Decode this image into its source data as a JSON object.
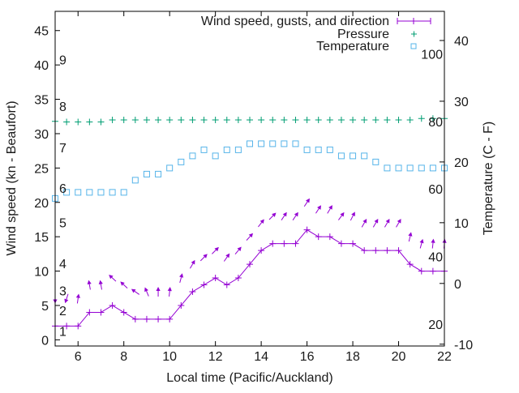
{
  "chart_data": {
    "type": "line",
    "title": "",
    "xlabel": "Local time (Pacific/Auckland)",
    "ylabel": "Wind speed (kn - Beaufort)",
    "y2label": "Temperature (C - F)",
    "xlim": [
      5,
      22
    ],
    "ylim": [
      -0.9,
      47.8
    ],
    "y2lim": [
      -10.3,
      44.8
    ],
    "xticks": [
      6,
      8,
      10,
      12,
      14,
      16,
      18,
      20,
      22
    ],
    "yticks": [
      0,
      5,
      10,
      15,
      20,
      25,
      30,
      35,
      40,
      45
    ],
    "y2ticks": [
      -10,
      0,
      10,
      20,
      30,
      40
    ],
    "beaufort_labels": [
      {
        "label": "1",
        "kn": 1.3
      },
      {
        "label": "2",
        "kn": 4.3
      },
      {
        "label": "3",
        "kn": 7.2
      },
      {
        "label": "4",
        "kn": 11.1
      },
      {
        "label": "5",
        "kn": 17.1
      },
      {
        "label": "6",
        "kn": 22.1
      },
      {
        "label": "7",
        "kn": 28
      },
      {
        "label": "8",
        "kn": 34
      },
      {
        "label": "9",
        "kn": 40.8
      }
    ],
    "fahrenheit_labels": [
      {
        "label": "20",
        "f": 20
      },
      {
        "label": "40",
        "f": 40
      },
      {
        "label": "60",
        "f": 60
      },
      {
        "label": "80",
        "f": 80
      },
      {
        "label": "100",
        "f": 100
      }
    ],
    "x": [
      5,
      5.5,
      6,
      6.5,
      7,
      7.5,
      8,
      8.5,
      9,
      9.5,
      10,
      10.5,
      11,
      11.5,
      12,
      12.5,
      13,
      13.5,
      14,
      14.5,
      15,
      15.5,
      16,
      16.5,
      17,
      17.5,
      18,
      18.5,
      19,
      19.5,
      20,
      20.5,
      21,
      21.5,
      22
    ],
    "series": [
      {
        "name": "Wind speed, gusts, and direction",
        "color": "#9400d3",
        "axis": "y",
        "values": [
          2,
          2,
          2,
          4,
          4,
          5,
          4,
          3,
          3,
          3,
          3,
          5,
          7,
          8,
          9,
          8,
          9,
          11,
          13,
          14,
          14,
          14,
          16,
          15,
          15,
          14,
          14,
          13,
          13,
          13,
          13,
          11,
          10,
          10,
          10
        ],
        "gusts": [
          6,
          6,
          6,
          8,
          8,
          9,
          8,
          7,
          7,
          7,
          7,
          9,
          11,
          12,
          13,
          12,
          13,
          15,
          17,
          18,
          18,
          18,
          20,
          19,
          19,
          18,
          18,
          17,
          17,
          17,
          17,
          15,
          14,
          14,
          14
        ],
        "direction_deg": [
          180,
          198,
          8,
          350,
          350,
          313,
          313,
          305,
          337,
          0,
          6,
          15,
          30,
          45,
          45,
          35,
          40,
          42,
          38,
          45,
          34,
          34,
          34,
          33,
          31,
          36,
          27,
          30,
          30,
          30,
          30,
          13,
          15,
          6,
          5
        ]
      },
      {
        "name": "Pressure",
        "color": "#009e73",
        "axis": "y",
        "values": [
          31.8,
          31.7,
          31.7,
          31.7,
          31.7,
          32,
          32,
          32,
          32,
          32,
          32,
          32,
          32,
          32,
          32,
          32,
          32,
          32,
          32,
          32,
          32,
          32,
          32,
          32,
          32,
          32,
          32,
          32,
          32,
          32,
          32,
          32,
          32.2,
          32.2,
          32.2
        ]
      },
      {
        "name": "Temperature",
        "color": "#56b4e9",
        "axis": "y2",
        "values": [
          14,
          15,
          15,
          15,
          15,
          15,
          15,
          17,
          18,
          18,
          19,
          20,
          21,
          22,
          21,
          22,
          22,
          23,
          23,
          23,
          23,
          23,
          22,
          22,
          22,
          21,
          21,
          21,
          20,
          19,
          19,
          19,
          19,
          19,
          19
        ]
      }
    ],
    "legend": "top-right",
    "grid": false
  }
}
